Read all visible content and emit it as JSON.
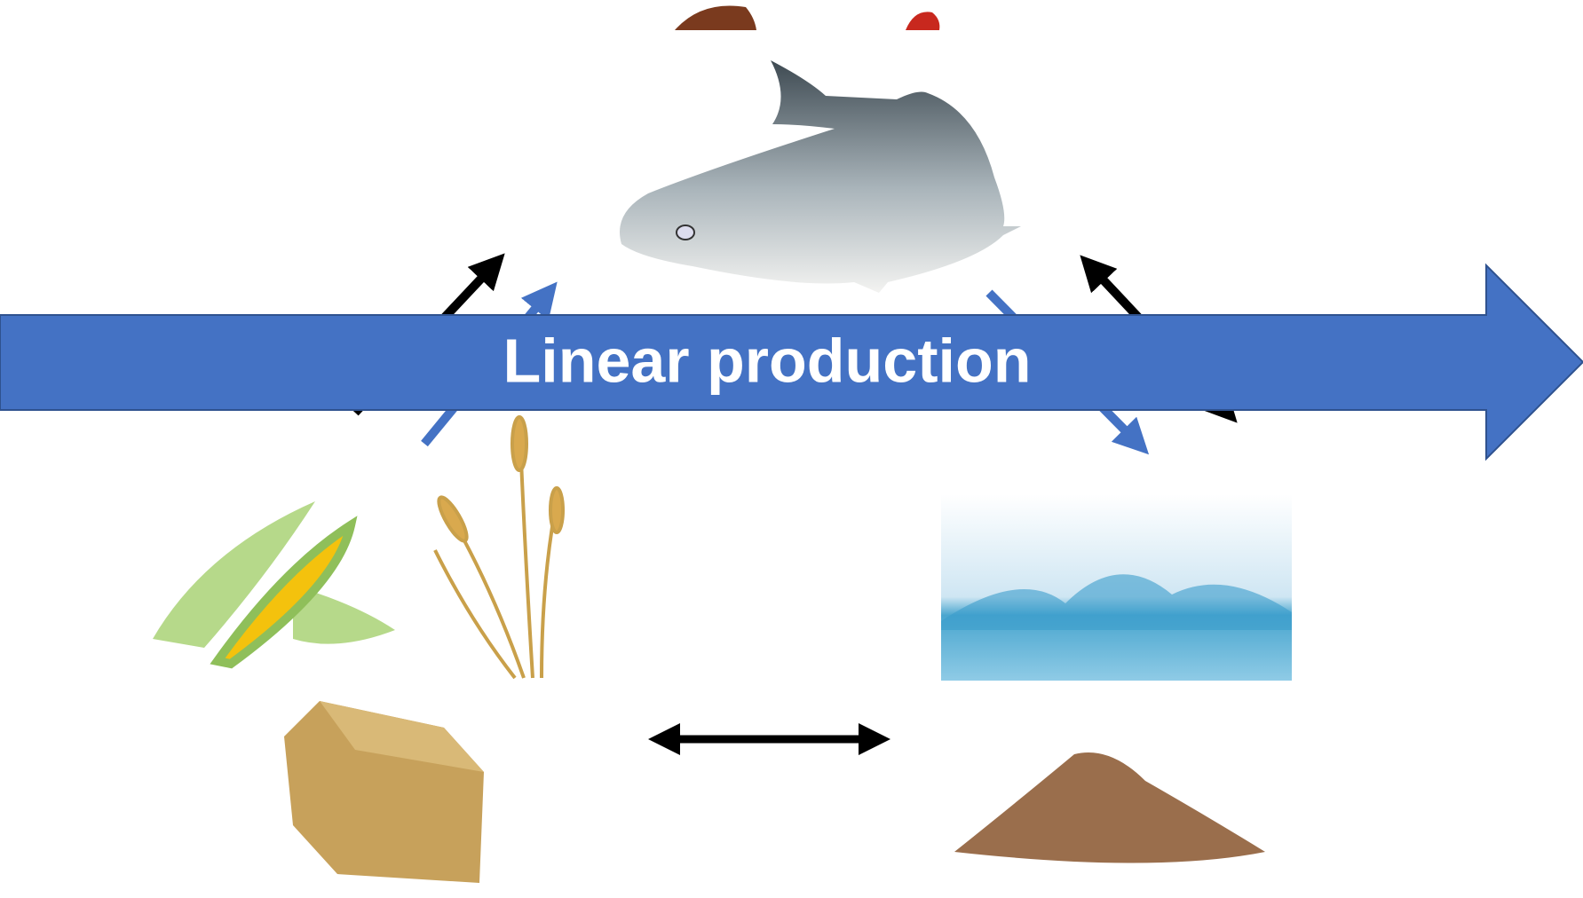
{
  "arrow": {
    "label": "Linear production"
  }
}
